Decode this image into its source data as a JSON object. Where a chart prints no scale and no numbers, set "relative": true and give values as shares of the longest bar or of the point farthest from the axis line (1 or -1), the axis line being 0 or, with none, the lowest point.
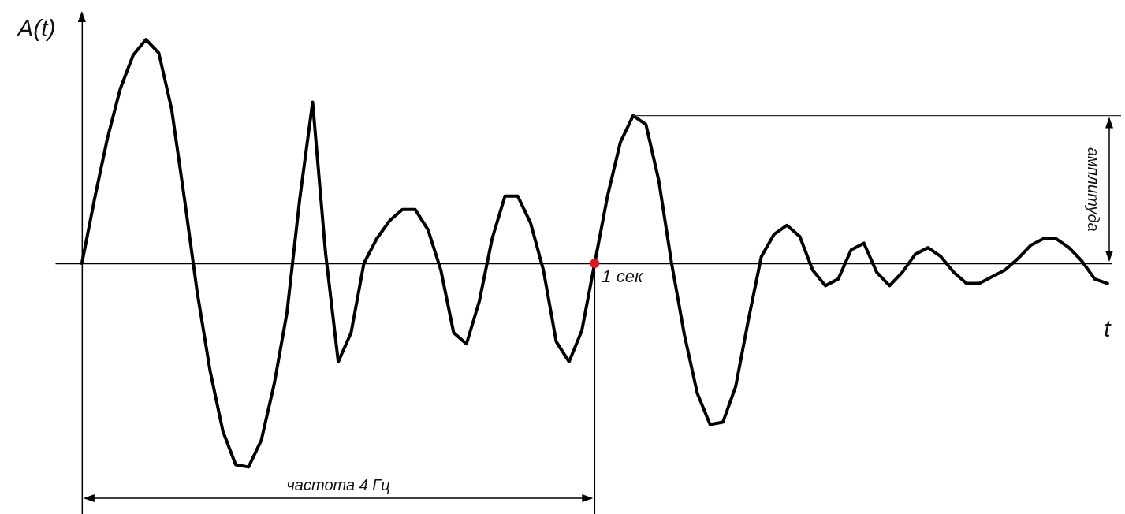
{
  "chart_data": {
    "type": "line",
    "relative": true,
    "xlabel": "t",
    "ylabel": "A(t)",
    "annotations": [
      "1 сек",
      "частота 4 Гц"
    ],
    "ref_lines": [
      {
        "axis": "y",
        "value": 0.66,
        "label": "амплитуда",
        "color": "#333333"
      }
    ],
    "categories": [
      null,
      null,
      null,
      null,
      null,
      null,
      null,
      null,
      null,
      null,
      null,
      null,
      null,
      null,
      null,
      null,
      null,
      null,
      null,
      null,
      null,
      null,
      null,
      null,
      null,
      null,
      null,
      null,
      null,
      null,
      null,
      null,
      null,
      null,
      null,
      null,
      null,
      null,
      null,
      null,
      null,
      null,
      null,
      null,
      null,
      null,
      null,
      null,
      null,
      null,
      null,
      null,
      null,
      null,
      null,
      null,
      null,
      null,
      null,
      null,
      null,
      null,
      null,
      null,
      null,
      null,
      null,
      null,
      null,
      null,
      null,
      null,
      null,
      null,
      null,
      null,
      null,
      null,
      null,
      null,
      null
    ],
    "series": [
      {
        "color": "#000000",
        "values": [
          0,
          0.29,
          0.56,
          0.78,
          0.93,
          1.0,
          0.94,
          0.69,
          0.29,
          -0.13,
          -0.48,
          -0.75,
          -0.9,
          -0.91,
          -0.79,
          -0.54,
          -0.22,
          0.29,
          0.72,
          0.05,
          -0.44,
          -0.31,
          0,
          0.11,
          0.19,
          0.24,
          0.24,
          0.15,
          -0.03,
          -0.31,
          -0.36,
          -0.17,
          0.11,
          0.3,
          0.3,
          0.18,
          -0.03,
          -0.35,
          -0.44,
          -0.3,
          0,
          0.3,
          0.54,
          0.66,
          0.62,
          0.37,
          0,
          -0.32,
          -0.58,
          -0.72,
          -0.71,
          -0.55,
          -0.25,
          0.03,
          0.13,
          0.17,
          0.12,
          -0.03,
          -0.1,
          -0.07,
          0.06,
          0.09,
          -0.04,
          -0.1,
          -0.04,
          0.04,
          0.07,
          0.03,
          -0.04,
          -0.09,
          -0.09,
          -0.06,
          -0.03,
          0.02,
          0.08,
          0.11,
          0.11,
          0.07,
          0.01,
          -0.07,
          -0.09
        ]
      }
    ]
  }
}
